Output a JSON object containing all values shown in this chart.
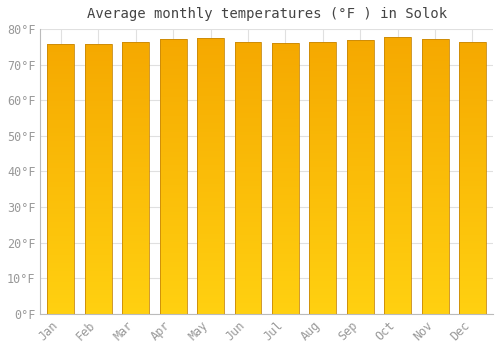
{
  "title": "Average monthly temperatures (°F ) in Solok",
  "months": [
    "Jan",
    "Feb",
    "Mar",
    "Apr",
    "May",
    "Jun",
    "Jul",
    "Aug",
    "Sep",
    "Oct",
    "Nov",
    "Dec"
  ],
  "values": [
    75.7,
    75.7,
    76.3,
    77.2,
    77.5,
    76.3,
    76.1,
    76.5,
    77.0,
    77.7,
    77.2,
    76.3
  ],
  "bar_color_top": "#F5A800",
  "bar_color_mid": "#FBB800",
  "bar_color_bottom": "#FFCC00",
  "bar_edge_color": "#C8880A",
  "background_color": "#FFFFFF",
  "grid_color": "#E0E0E0",
  "text_color": "#999999",
  "ylim": [
    0,
    80
  ],
  "yticks": [
    0,
    10,
    20,
    30,
    40,
    50,
    60,
    70,
    80
  ],
  "title_fontsize": 10,
  "tick_fontsize": 8.5,
  "bar_width": 0.72,
  "figsize": [
    5.0,
    3.5
  ],
  "dpi": 100
}
